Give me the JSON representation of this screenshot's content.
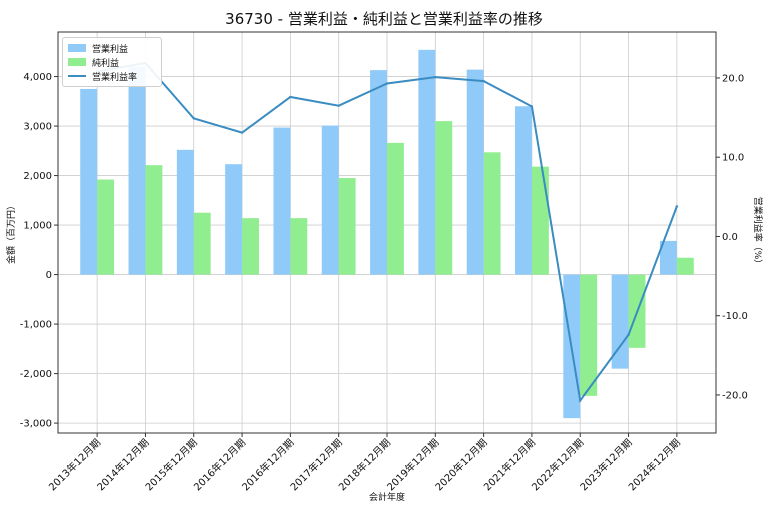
{
  "chart_data": {
    "type": "bar",
    "title": "36730 - 営業利益・純利益と営業利益率の推移",
    "xlabel": "会計年度",
    "ylabel_left": "金額（百万円）",
    "ylabel_right": "営業利益率（%）",
    "categories": [
      "2013年12月期",
      "2014年12月期",
      "2015年12月期",
      "2016年12月期",
      "2016年12月期",
      "2017年12月期",
      "2018年12月期",
      "2019年12月期",
      "2020年12月期",
      "2021年12月期",
      "2022年12月期",
      "2023年12月期",
      "2024年12月期"
    ],
    "series": [
      {
        "name": "営業利益",
        "kind": "bar",
        "axis": "left",
        "color": "#90caf9",
        "values": [
          3750,
          4200,
          2520,
          2230,
          2970,
          3010,
          4130,
          4540,
          4140,
          3400,
          -2900,
          -1900,
          680
        ]
      },
      {
        "name": "純利益",
        "kind": "bar",
        "axis": "left",
        "color": "#90ee90",
        "values": [
          1920,
          2210,
          1250,
          1140,
          1140,
          1950,
          2660,
          3100,
          2470,
          2180,
          -2450,
          -1480,
          340
        ]
      },
      {
        "name": "営業利益率",
        "kind": "line",
        "axis": "right",
        "color": "#3a8cc1",
        "values": [
          20.8,
          21.9,
          14.9,
          13.1,
          17.6,
          16.5,
          19.3,
          20.1,
          19.6,
          16.4,
          -20.7,
          -12.4,
          3.8
        ]
      }
    ],
    "y_left": {
      "range": [
        -3200,
        4900
      ],
      "ticks": [
        -3000,
        -2000,
        -1000,
        0,
        1000,
        2000,
        3000,
        4000
      ],
      "tick_labels": [
        "-3,000",
        "-2,000",
        "-1,000",
        "0",
        "1,000",
        "2,000",
        "3,000",
        "4,000"
      ]
    },
    "y_right": {
      "range": [
        -24.8,
        25.8
      ],
      "ticks": [
        -20,
        -10,
        0,
        10,
        20
      ],
      "tick_labels": [
        "-20.0",
        "-10.0",
        "0.0",
        "10.0",
        "20.0"
      ]
    },
    "grid": true,
    "legend": "top-left"
  }
}
